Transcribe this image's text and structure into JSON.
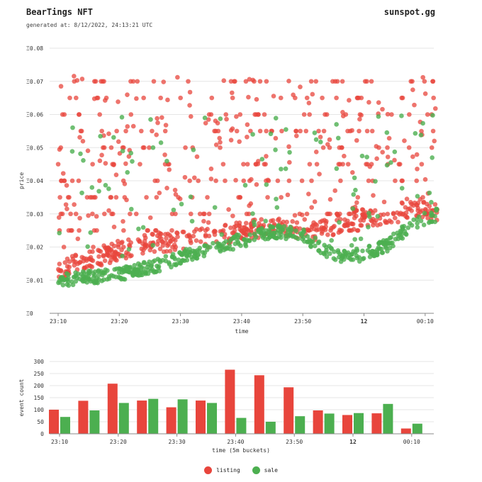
{
  "header": {
    "title": "BearTings NFT",
    "site": "sunspot.gg",
    "generated": "generated at: 8/12/2022, 24:13:21 UTC"
  },
  "colors": {
    "listing": "#e8453c",
    "sale": "#4caf50",
    "grid": "#e6e6e6",
    "axis": "#888888"
  },
  "legend": [
    {
      "label": "listing",
      "color": "#e8453c"
    },
    {
      "label": "sale",
      "color": "#4caf50"
    }
  ],
  "chart_data": [
    {
      "type": "scatter",
      "title": "",
      "xlabel": "time",
      "ylabel": "price",
      "x_ticks": [
        "23:10",
        "23:20",
        "23:30",
        "23:40",
        "23:50",
        "12",
        "00:10"
      ],
      "bold_x_tick": "12",
      "x_range_minutes": [
        0,
        63
      ],
      "ylim": [
        0,
        0.08
      ],
      "y_ticks": [
        "Ξ0",
        "Ξ0.01",
        "Ξ0.02",
        "Ξ0.03",
        "Ξ0.04",
        "Ξ0.05",
        "Ξ0.06",
        "Ξ0.07",
        "Ξ0.08"
      ],
      "grid": true,
      "series": [
        {
          "name": "listing",
          "color": "#e8453c",
          "trend": [
            [
              0,
              0.012
            ],
            [
              3,
              0.015
            ],
            [
              8,
              0.018
            ],
            [
              14,
              0.021
            ],
            [
              20,
              0.022
            ],
            [
              26,
              0.023
            ],
            [
              30,
              0.025
            ],
            [
              34,
              0.026
            ],
            [
              38,
              0.026
            ],
            [
              42,
              0.025
            ],
            [
              46,
              0.027
            ],
            [
              50,
              0.029
            ],
            [
              54,
              0.03
            ],
            [
              58,
              0.031
            ],
            [
              62,
              0.031
            ]
          ],
          "bands": [
            0.02,
            0.025,
            0.03,
            0.035,
            0.04,
            0.045,
            0.05,
            0.055,
            0.06,
            0.065,
            0.07
          ],
          "max": 0.072
        },
        {
          "name": "sale",
          "color": "#4caf50",
          "trend": [
            [
              0,
              0.009
            ],
            [
              5,
              0.01
            ],
            [
              10,
              0.011
            ],
            [
              15,
              0.013
            ],
            [
              20,
              0.016
            ],
            [
              25,
              0.019
            ],
            [
              30,
              0.021
            ],
            [
              35,
              0.024
            ],
            [
              40,
              0.023
            ],
            [
              43,
              0.019
            ],
            [
              46,
              0.016
            ],
            [
              50,
              0.017
            ],
            [
              54,
              0.02
            ],
            [
              58,
              0.026
            ],
            [
              62,
              0.029
            ]
          ],
          "max": 0.06
        }
      ]
    },
    {
      "type": "bar",
      "title": "",
      "xlabel": "time (5m buckets)",
      "ylabel": "event count",
      "x_ticks": [
        "23:10",
        "23:20",
        "23:30",
        "23:40",
        "23:50",
        "12",
        "00:10"
      ],
      "bold_x_tick": "12",
      "ylim": [
        0,
        300
      ],
      "y_ticks": [
        0,
        50,
        100,
        150,
        200,
        250,
        300
      ],
      "grid": true,
      "series": [
        {
          "name": "listing",
          "color": "#e8453c",
          "values": [
            100,
            137,
            208,
            138,
            110,
            138,
            266,
            243,
            193,
            97,
            78,
            85,
            22
          ]
        },
        {
          "name": "sale",
          "color": "#4caf50",
          "values": [
            70,
            97,
            128,
            145,
            143,
            128,
            66,
            50,
            73,
            84,
            86,
            124,
            42
          ]
        }
      ]
    }
  ]
}
